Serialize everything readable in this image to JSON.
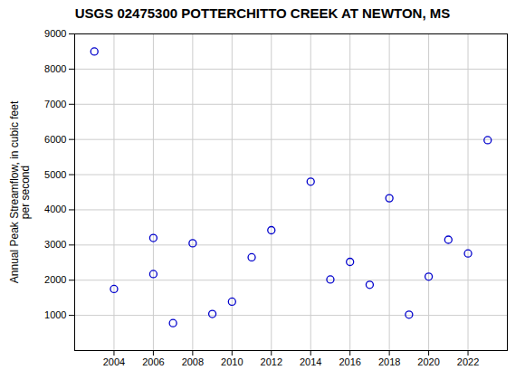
{
  "chart_data": {
    "type": "scatter",
    "title": "USGS 02475300 POTTERCHITTO CREEK AT NEWTON, MS",
    "ylabel": "Annual Peak Streamflow, in cubic feet\nper second",
    "x": [
      2003,
      2004,
      2006,
      2006,
      2007,
      2008,
      2009,
      2010,
      2011,
      2012,
      2014,
      2015,
      2016,
      2017,
      2018,
      2019,
      2020,
      2021,
      2022,
      2023
    ],
    "values": [
      8500,
      1750,
      3200,
      2175,
      780,
      3050,
      1040,
      1390,
      2650,
      3420,
      4800,
      2020,
      2520,
      1870,
      4330,
      1020,
      2100,
      3150,
      2760,
      5980
    ],
    "color": "#0000CC",
    "marker": "circle",
    "xlim": [
      2002.0,
      2024.0
    ],
    "ylim": [
      0,
      9000
    ],
    "xticks": [
      2004,
      2006,
      2008,
      2010,
      2012,
      2014,
      2016,
      2018,
      2020,
      2022
    ],
    "yticks": [
      1000,
      2000,
      3000,
      4000,
      5000,
      6000,
      7000,
      8000,
      9000
    ],
    "grid": true
  }
}
